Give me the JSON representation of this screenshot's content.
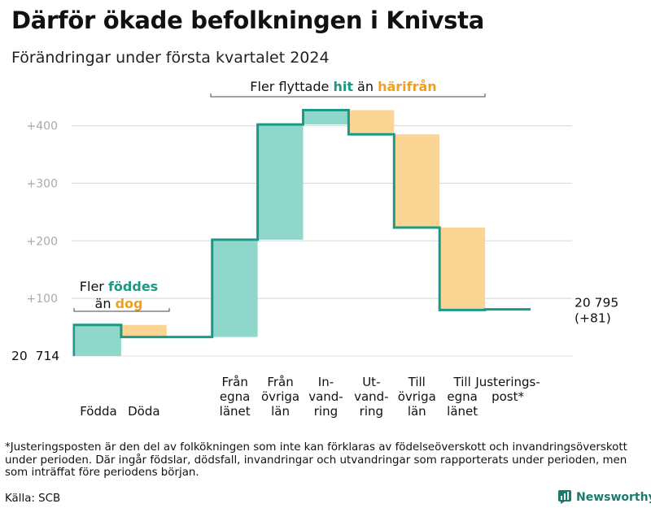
{
  "title": "Därför ökade befolkningen i Knivsta",
  "subtitle": "Förändringar under första kvartalet 2024",
  "footnote": "*Justeringsposten är den del av folkökningen som inte kan förklaras av födelseöverskott och invandringsöverskott under perioden. Där ingår födslar, dödsfall, invandringar och utvandringar som rapporterats under perioden, men som inträffat före periodens början.",
  "source": "Källa: SCB",
  "brand": "Newsworthy",
  "colors": {
    "line": "#1a9a86",
    "increase": "#8fd6cb",
    "decrease": "#fbd593",
    "teal_text": "#1a9a86",
    "orange_text": "#f0a020",
    "grid": "#dddddd",
    "tick_text": "#aaaaaa"
  },
  "chart_data": {
    "type": "waterfall",
    "start_label": "20  714",
    "end_label": [
      "20 795",
      "(+81)"
    ],
    "y_ticks": [
      {
        "value": 100,
        "label": "+100"
      },
      {
        "value": 200,
        "label": "+200"
      },
      {
        "value": 300,
        "label": "+300"
      },
      {
        "value": 400,
        "label": "+400"
      }
    ],
    "ylim": [
      0,
      430
    ],
    "steps": [
      {
        "label": [
          "Födda"
        ],
        "from": 0,
        "to": 54,
        "kind": "increase"
      },
      {
        "label": [
          "Döda"
        ],
        "from": 54,
        "to": 33,
        "kind": "decrease"
      },
      {
        "label": [],
        "from": 33,
        "to": 33,
        "kind": "flat"
      },
      {
        "label": [
          "Från",
          "egna",
          "länet"
        ],
        "from": 33,
        "to": 202,
        "kind": "increase"
      },
      {
        "label": [
          "Från",
          "övriga",
          "län"
        ],
        "from": 202,
        "to": 402,
        "kind": "increase"
      },
      {
        "label": [
          "In-",
          "vand-",
          "ring"
        ],
        "from": 402,
        "to": 427,
        "kind": "increase"
      },
      {
        "label": [
          "Ut-",
          "vand-",
          "ring"
        ],
        "from": 427,
        "to": 385,
        "kind": "decrease"
      },
      {
        "label": [
          "Till",
          "övriga",
          "län"
        ],
        "from": 385,
        "to": 223,
        "kind": "decrease"
      },
      {
        "label": [
          "Till",
          "egna",
          "länet"
        ],
        "from": 223,
        "to": 80,
        "kind": "decrease"
      },
      {
        "label": [
          "Justerings-",
          "post*"
        ],
        "from": 80,
        "to": 81,
        "kind": "adjust"
      }
    ],
    "annotations": [
      {
        "group": "births",
        "lines": [
          [
            {
              "text": "Fler ",
              "tone": "plain"
            },
            {
              "text": "föddes",
              "tone": "teal"
            }
          ],
          [
            {
              "text": "än ",
              "tone": "plain"
            },
            {
              "text": "dog",
              "tone": "orange"
            }
          ]
        ]
      },
      {
        "group": "migration",
        "lines": [
          [
            {
              "text": "Fler flyttade ",
              "tone": "plain"
            },
            {
              "text": "hit",
              "tone": "teal"
            },
            {
              "text": " än ",
              "tone": "plain"
            },
            {
              "text": "härifrån",
              "tone": "orange"
            }
          ]
        ]
      }
    ]
  }
}
